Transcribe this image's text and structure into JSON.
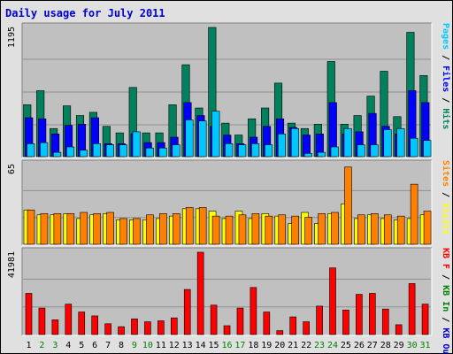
{
  "title": "Daily usage for July 2011",
  "colors": {
    "frame_bg": "#e0e0e0",
    "plot_bg": "#c0c0c0",
    "gridline": "#909090",
    "title": "#0000cc",
    "hits": "#00805c",
    "files": "#0000ff",
    "pages": "#00c8ff",
    "visits": "#ffff00",
    "sites": "#ff8000",
    "kbin": "#008000",
    "kbout": "#0000cc",
    "kbf": "#ff0000",
    "day_weekday": "#000000",
    "day_weekend": "#008000"
  },
  "chart_data": [
    {
      "type": "bar",
      "panel": "top",
      "ymax_label": "1195",
      "ylim": [
        0,
        1195
      ],
      "right_label_parts": [
        {
          "text": "Pages",
          "color": "#00c8ff"
        },
        {
          "text": " / ",
          "color": "#000000"
        },
        {
          "text": "Files",
          "color": "#0000ff"
        },
        {
          "text": " / ",
          "color": "#000000"
        },
        {
          "text": "Hits",
          "color": "#00805c"
        }
      ],
      "series": [
        {
          "name": "Hits",
          "color": "#00805c",
          "values": [
            480,
            610,
            260,
            470,
            380,
            410,
            280,
            220,
            640,
            220,
            220,
            480,
            850,
            450,
            1195,
            310,
            200,
            350,
            450,
            680,
            310,
            260,
            300,
            880,
            300,
            380,
            560,
            790,
            370,
            1150,
            750
          ]
        },
        {
          "name": "Files",
          "color": "#0000ff",
          "values": [
            360,
            350,
            210,
            290,
            300,
            360,
            120,
            120,
            210,
            130,
            130,
            180,
            500,
            380,
            280,
            200,
            120,
            180,
            280,
            350,
            270,
            200,
            210,
            500,
            210,
            230,
            400,
            280,
            210,
            610,
            500
          ]
        },
        {
          "name": "Pages",
          "color": "#00c8ff",
          "values": [
            120,
            130,
            40,
            90,
            60,
            120,
            110,
            110,
            230,
            80,
            80,
            110,
            340,
            330,
            420,
            120,
            110,
            120,
            110,
            210,
            260,
            30,
            40,
            90,
            260,
            110,
            110,
            250,
            260,
            170,
            150
          ]
        }
      ]
    },
    {
      "type": "bar",
      "panel": "middle",
      "ymax_label": "65",
      "ylim": [
        0,
        65
      ],
      "right_label_parts": [
        {
          "text": "Sites",
          "color": "#ff8000"
        },
        {
          "text": " / ",
          "color": "#000000"
        },
        {
          "text": "Visits",
          "color": "#ffff00"
        }
      ],
      "series": [
        {
          "name": "Visits",
          "color": "#ffff00",
          "values": [
            28,
            24,
            24,
            25,
            21,
            24,
            25,
            20,
            20,
            20,
            21,
            23,
            29,
            29,
            27,
            21,
            27,
            21,
            25,
            23,
            17,
            26,
            17,
            25,
            33,
            21,
            24,
            21,
            20,
            21,
            24
          ]
        },
        {
          "name": "Sites",
          "color": "#ff8000",
          "values": [
            28,
            25,
            25,
            25,
            26,
            25,
            26,
            21,
            21,
            24,
            25,
            25,
            30,
            30,
            23,
            23,
            24,
            25,
            23,
            24,
            23,
            22,
            25,
            26,
            63,
            24,
            25,
            24,
            23,
            49,
            27
          ]
        }
      ]
    },
    {
      "type": "bar",
      "panel": "bottom",
      "ymax_label": "41981",
      "ylim": [
        0,
        41981
      ],
      "right_label_parts": [
        {
          "text": "KB F",
          "color": "#ff0000"
        },
        {
          "text": " / ",
          "color": "#000000"
        },
        {
          "text": "KB In",
          "color": "#008000"
        },
        {
          "text": " / ",
          "color": "#000000"
        },
        {
          "text": "KB Out",
          "color": "#0000cc"
        }
      ],
      "series": [
        {
          "name": "KB F",
          "color": "#ff0000",
          "values": [
            21000,
            13500,
            7500,
            15500,
            11500,
            9500,
            5500,
            4000,
            8000,
            6500,
            7000,
            8500,
            23000,
            41981,
            15000,
            4500,
            13500,
            24000,
            11500,
            2000,
            9000,
            6500,
            14500,
            34000,
            12500,
            20500,
            21000,
            13000,
            5000,
            26000,
            15500
          ]
        }
      ]
    }
  ],
  "x_days": [
    {
      "label": "1",
      "weekend": false
    },
    {
      "label": "2",
      "weekend": true
    },
    {
      "label": "3",
      "weekend": true
    },
    {
      "label": "4",
      "weekend": false
    },
    {
      "label": "5",
      "weekend": false
    },
    {
      "label": "6",
      "weekend": false
    },
    {
      "label": "7",
      "weekend": false
    },
    {
      "label": "8",
      "weekend": false
    },
    {
      "label": "9",
      "weekend": true
    },
    {
      "label": "10",
      "weekend": true
    },
    {
      "label": "11",
      "weekend": false
    },
    {
      "label": "12",
      "weekend": false
    },
    {
      "label": "13",
      "weekend": false
    },
    {
      "label": "14",
      "weekend": false
    },
    {
      "label": "15",
      "weekend": false
    },
    {
      "label": "16",
      "weekend": true
    },
    {
      "label": "17",
      "weekend": true
    },
    {
      "label": "18",
      "weekend": false
    },
    {
      "label": "19",
      "weekend": false
    },
    {
      "label": "20",
      "weekend": false
    },
    {
      "label": "21",
      "weekend": false
    },
    {
      "label": "22",
      "weekend": false
    },
    {
      "label": "23",
      "weekend": true
    },
    {
      "label": "24",
      "weekend": true
    },
    {
      "label": "25",
      "weekend": false
    },
    {
      "label": "26",
      "weekend": false
    },
    {
      "label": "27",
      "weekend": false
    },
    {
      "label": "28",
      "weekend": false
    },
    {
      "label": "29",
      "weekend": false
    },
    {
      "label": "30",
      "weekend": true
    },
    {
      "label": "31",
      "weekend": true
    }
  ]
}
